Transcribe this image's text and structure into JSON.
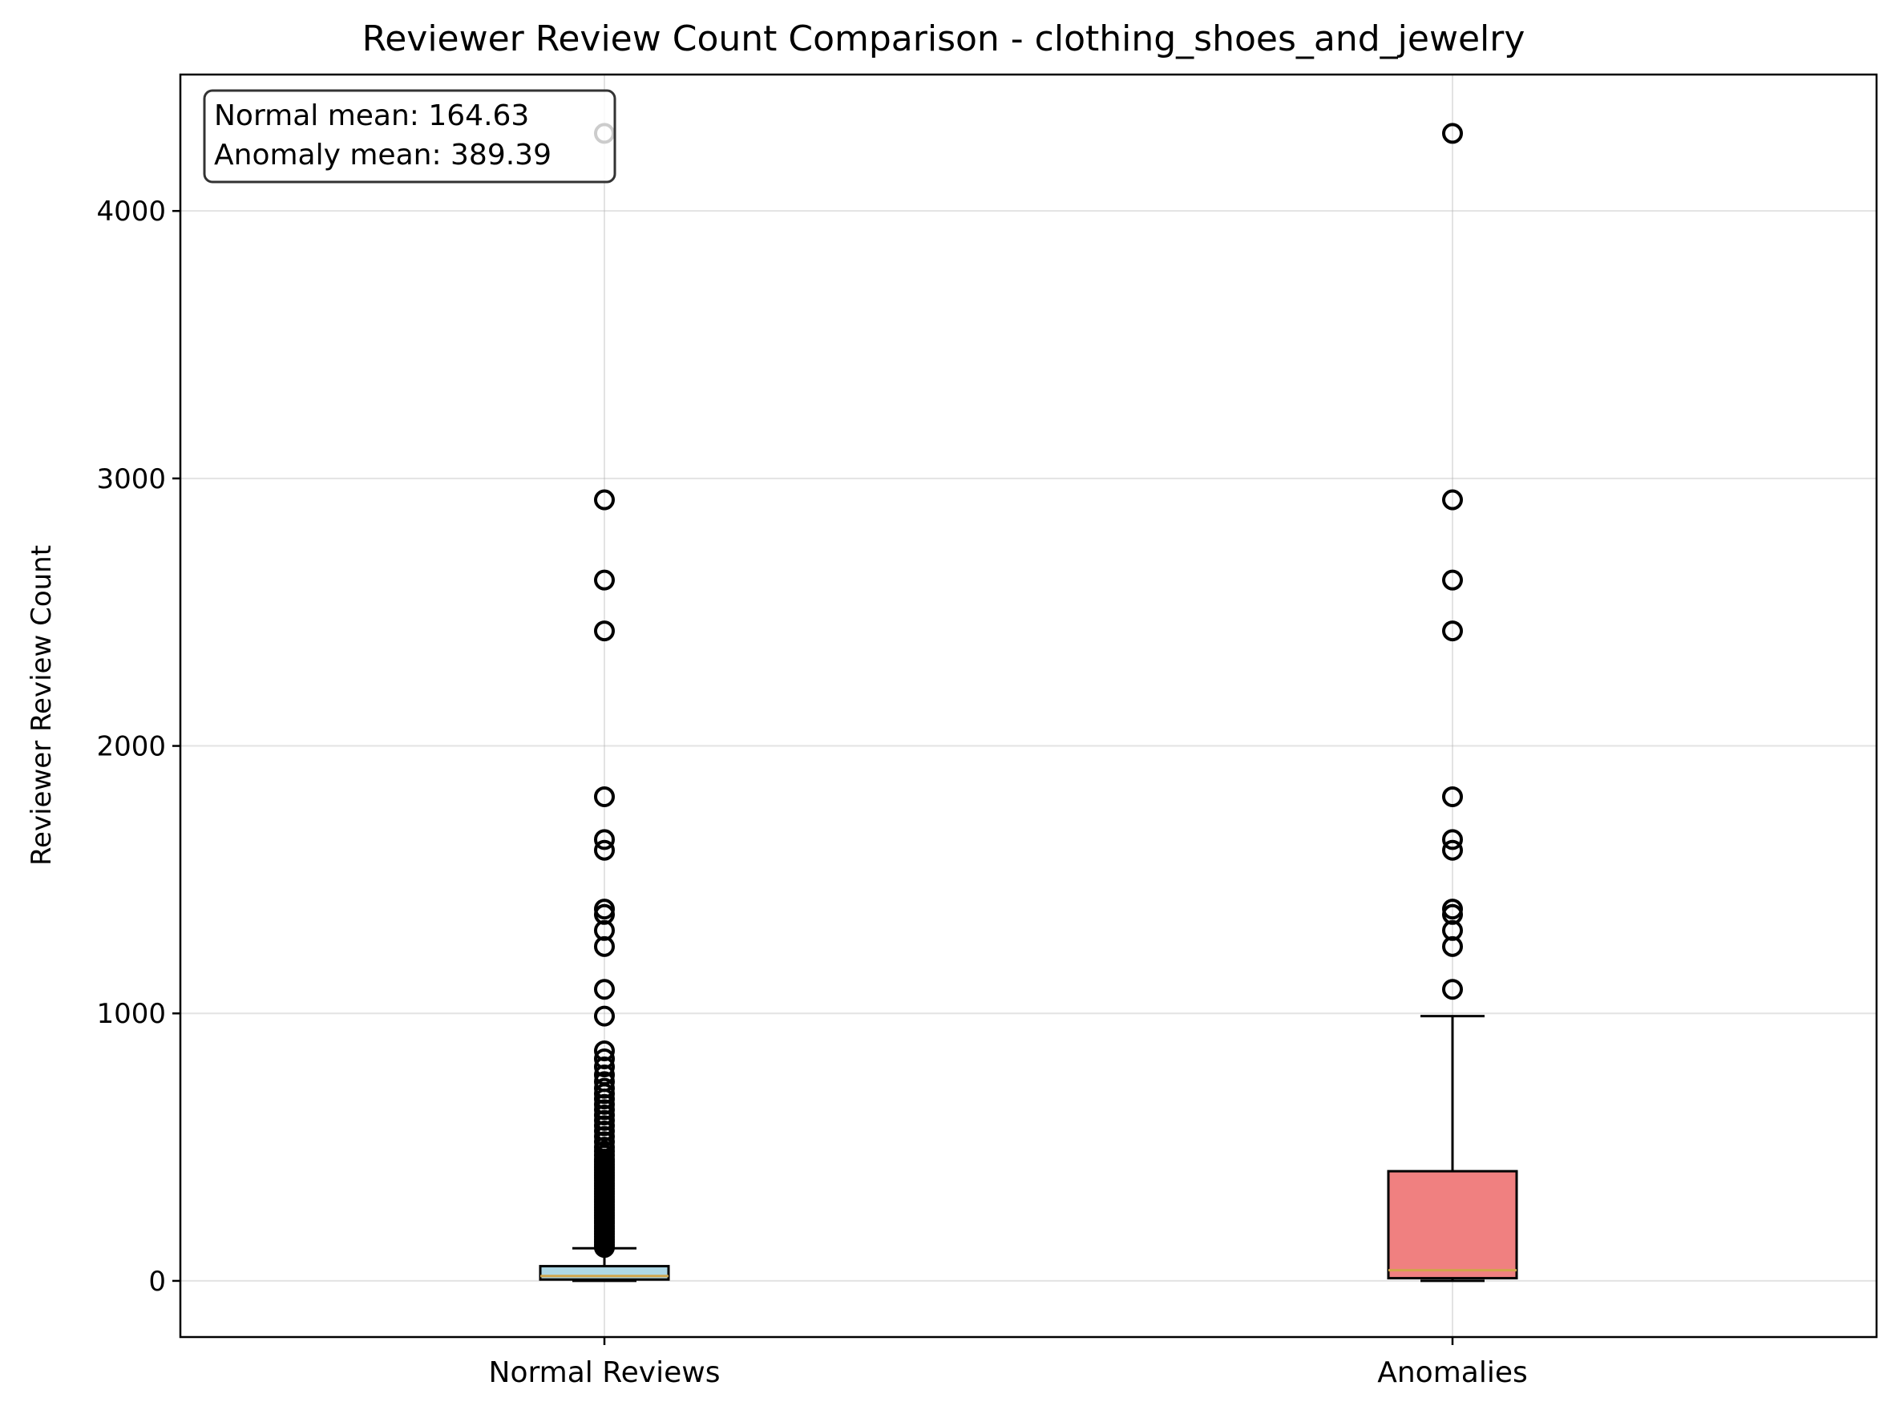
{
  "chart_data": {
    "type": "boxplot",
    "title": "Reviewer Review Count Comparison - clothing_shoes_and_jewelry",
    "xlabel": "",
    "ylabel": "Reviewer Review Count",
    "ylim": [
      -210,
      4510
    ],
    "yticks": [
      0,
      1000,
      2000,
      3000,
      4000
    ],
    "grid": true,
    "annotation": {
      "lines": [
        "Normal mean: 164.63",
        "Anomaly mean: 389.39"
      ],
      "placement": "top-left"
    },
    "series": [
      {
        "name": "Normal Reviews",
        "color": "#add8e6",
        "min": 0,
        "q1": 5,
        "median": 18,
        "q3": 55,
        "whisker_high": 122,
        "outliers": [
          125,
          135,
          145,
          155,
          165,
          175,
          185,
          195,
          205,
          215,
          225,
          235,
          245,
          255,
          265,
          275,
          285,
          295,
          305,
          315,
          325,
          335,
          345,
          355,
          365,
          375,
          385,
          395,
          405,
          415,
          425,
          435,
          445,
          455,
          470,
          485,
          500,
          520,
          540,
          560,
          580,
          600,
          620,
          640,
          660,
          680,
          700,
          720,
          745,
          770,
          800,
          830,
          860,
          990,
          1090,
          1250,
          1310,
          1370,
          1390,
          1610,
          1650,
          1810,
          2430,
          2620,
          2920,
          4290
        ]
      },
      {
        "name": "Anomalies",
        "color": "#f08080",
        "min": 0,
        "q1": 10,
        "median": 40,
        "q3": 410,
        "whisker_high": 990,
        "outliers": [
          1090,
          1250,
          1310,
          1370,
          1390,
          1610,
          1650,
          1810,
          2430,
          2620,
          2920,
          4290
        ]
      }
    ],
    "median_color": "#d1a54a"
  }
}
